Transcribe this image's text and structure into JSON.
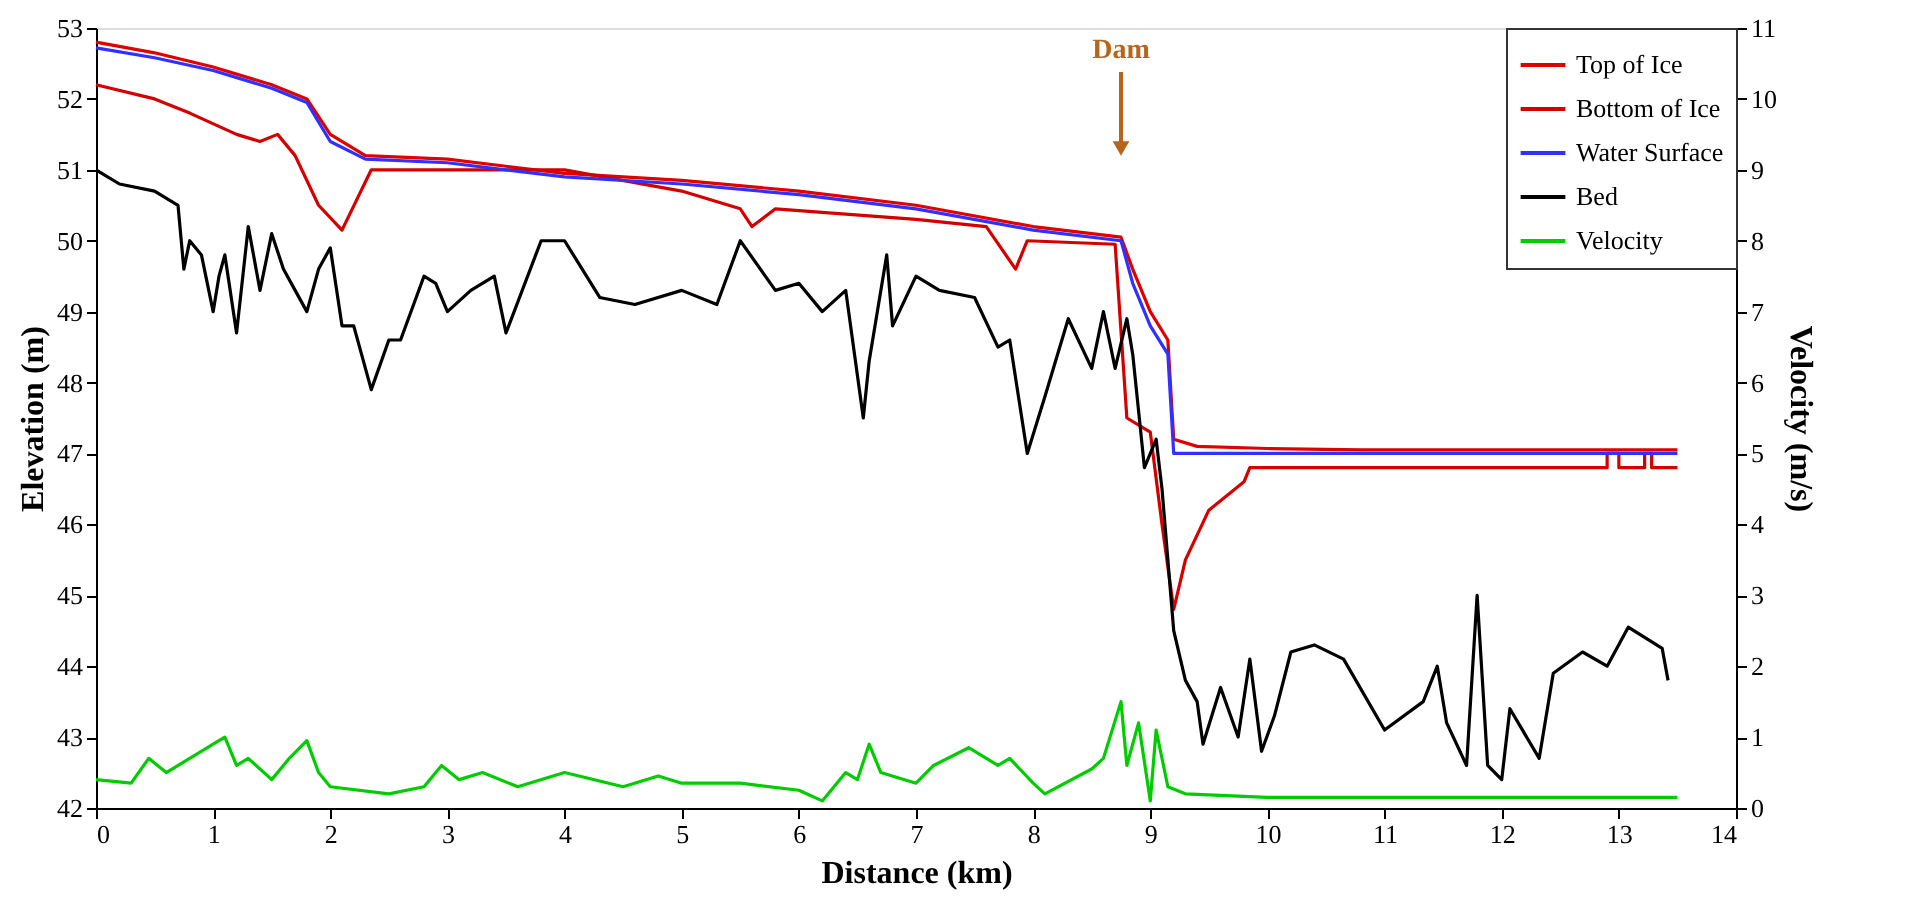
{
  "chart_data": {
    "type": "line",
    "xlabel": "Distance (km)",
    "ylabel": "Elevation (m)",
    "y2label": "Velocity (m/s)",
    "xlim": [
      0,
      14
    ],
    "xticks": [
      0,
      1,
      2,
      3,
      4,
      5,
      6,
      7,
      8,
      9,
      10,
      11,
      12,
      13,
      14
    ],
    "ylim": [
      42,
      53
    ],
    "yticks": [
      42,
      43,
      44,
      45,
      46,
      47,
      48,
      49,
      50,
      51,
      52,
      53
    ],
    "y2lim": [
      0,
      11
    ],
    "y2ticks": [
      0,
      1,
      2,
      3,
      4,
      5,
      6,
      7,
      8,
      9,
      10,
      11
    ],
    "grid": false,
    "legend": "top right",
    "marker": "none",
    "line_style": "solid",
    "annotations": [
      {
        "text": "Dam",
        "x": 8.75,
        "y": 51.3
      }
    ],
    "series": [
      {
        "name": "Top of Ice",
        "color": "#e00000",
        "x": [
          0,
          0.5,
          1,
          1.5,
          1.8,
          2.0,
          2.3,
          3,
          4,
          5,
          6,
          7,
          8,
          8.75,
          8.85,
          9.0,
          9.15,
          9.2,
          9.4,
          10,
          10.8,
          13.5
        ],
        "values": [
          52.8,
          52.65,
          52.45,
          52.2,
          52.0,
          51.5,
          51.2,
          51.15,
          50.95,
          50.85,
          50.7,
          50.5,
          50.2,
          50.05,
          49.6,
          49.0,
          48.6,
          47.2,
          47.1,
          47.07,
          47.05,
          47.05
        ]
      },
      {
        "name": "Bottom of Ice",
        "color": "#d40000",
        "x": [
          0,
          0.5,
          0.8,
          1.2,
          1.4,
          1.55,
          1.7,
          1.9,
          2.1,
          2.35,
          4,
          5,
          5.5,
          5.6,
          5.8,
          7,
          7.6,
          7.85,
          7.95,
          8.7,
          8.8,
          9.0,
          9.1,
          9.2,
          9.3,
          9.5,
          9.8,
          9.85,
          12.9,
          12.9,
          13.0,
          13.0,
          13.22,
          13.22,
          13.28,
          13.28,
          13.5
        ],
        "values": [
          52.2,
          52.0,
          51.8,
          51.5,
          51.4,
          51.5,
          51.2,
          50.5,
          50.15,
          51.0,
          51.0,
          50.7,
          50.45,
          50.2,
          50.45,
          50.3,
          50.2,
          49.6,
          50.0,
          49.95,
          47.5,
          47.3,
          46.0,
          44.8,
          45.5,
          46.2,
          46.6,
          46.8,
          46.8,
          47.0,
          47.0,
          46.8,
          46.8,
          47.0,
          47.0,
          46.8,
          46.8
        ]
      },
      {
        "name": "Water Surface",
        "color": "#3030ff",
        "x": [
          0,
          0.5,
          1,
          1.5,
          1.8,
          2.0,
          2.3,
          3,
          4,
          5,
          6,
          7,
          8,
          8.75,
          8.85,
          9.0,
          9.15,
          9.2,
          13.5
        ],
        "values": [
          52.72,
          52.58,
          52.4,
          52.15,
          51.95,
          51.4,
          51.15,
          51.1,
          50.9,
          50.8,
          50.65,
          50.45,
          50.15,
          50.0,
          49.4,
          48.8,
          48.4,
          47.0,
          47.0
        ]
      },
      {
        "name": "Bed",
        "color": "#000000",
        "x": [
          0,
          0.2,
          0.5,
          0.7,
          0.75,
          0.8,
          0.9,
          1.0,
          1.05,
          1.1,
          1.2,
          1.3,
          1.4,
          1.5,
          1.6,
          1.7,
          1.8,
          1.9,
          2.0,
          2.1,
          2.2,
          2.35,
          2.5,
          2.6,
          2.8,
          2.9,
          3.0,
          3.2,
          3.4,
          3.5,
          3.8,
          4.0,
          4.3,
          4.6,
          5.0,
          5.3,
          5.5,
          5.8,
          6.0,
          6.2,
          6.4,
          6.55,
          6.6,
          6.75,
          6.8,
          7.0,
          7.2,
          7.5,
          7.7,
          7.8,
          7.95,
          8.1,
          8.3,
          8.5,
          8.6,
          8.7,
          8.8,
          8.85,
          8.95,
          9.05,
          9.1,
          9.2,
          9.3,
          9.4,
          9.45,
          9.6,
          9.75,
          9.85,
          9.95,
          10.06,
          10.2,
          10.4,
          10.65,
          11.0,
          11.33,
          11.45,
          11.53,
          11.7,
          11.79,
          11.88,
          12.0,
          12.07,
          12.32,
          12.44,
          12.69,
          12.9,
          13.08,
          13.37,
          13.42
        ],
        "values": [
          51.0,
          50.8,
          50.7,
          50.5,
          49.6,
          50.0,
          49.8,
          49.0,
          49.5,
          49.8,
          48.7,
          50.2,
          49.3,
          50.1,
          49.6,
          49.3,
          49.0,
          49.6,
          49.9,
          48.8,
          48.8,
          47.9,
          48.6,
          48.6,
          49.5,
          49.4,
          49.0,
          49.3,
          49.5,
          48.7,
          50.0,
          50.0,
          49.2,
          49.1,
          49.3,
          49.1,
          50.0,
          49.3,
          49.4,
          49.0,
          49.3,
          47.5,
          48.3,
          49.8,
          48.8,
          49.5,
          49.3,
          49.2,
          48.5,
          48.6,
          47.0,
          47.8,
          48.9,
          48.2,
          49.0,
          48.2,
          48.9,
          48.4,
          46.8,
          47.2,
          46.5,
          44.5,
          43.8,
          43.5,
          42.9,
          43.7,
          43.0,
          44.1,
          42.8,
          43.3,
          44.2,
          44.3,
          44.1,
          43.1,
          43.5,
          44.0,
          43.2,
          42.6,
          45.0,
          42.6,
          42.4,
          43.4,
          42.7,
          43.9,
          44.2,
          44.0,
          44.55,
          44.25,
          43.8
        ]
      },
      {
        "name": "Velocity",
        "color": "#00cc00",
        "axis": "y2",
        "x": [
          0,
          0.3,
          0.45,
          0.6,
          0.8,
          1.0,
          1.1,
          1.2,
          1.3,
          1.5,
          1.65,
          1.8,
          1.9,
          2.0,
          2.5,
          2.8,
          2.95,
          3.1,
          3.3,
          3.6,
          4.0,
          4.5,
          4.8,
          5.0,
          5.5,
          6.0,
          6.2,
          6.4,
          6.5,
          6.6,
          6.7,
          7.0,
          7.15,
          7.45,
          7.7,
          7.8,
          8.0,
          8.1,
          8.5,
          8.6,
          8.75,
          8.8,
          8.9,
          9.0,
          9.05,
          9.15,
          9.3,
          10,
          13.5
        ],
        "values": [
          0.4,
          0.35,
          0.7,
          0.5,
          0.7,
          0.9,
          1.0,
          0.6,
          0.7,
          0.4,
          0.7,
          0.95,
          0.5,
          0.3,
          0.2,
          0.3,
          0.6,
          0.4,
          0.5,
          0.3,
          0.5,
          0.3,
          0.45,
          0.35,
          0.35,
          0.25,
          0.1,
          0.5,
          0.4,
          0.9,
          0.5,
          0.35,
          0.6,
          0.85,
          0.6,
          0.7,
          0.35,
          0.2,
          0.55,
          0.7,
          1.5,
          0.6,
          1.2,
          0.1,
          1.1,
          0.3,
          0.2,
          0.15,
          0.15
        ]
      }
    ]
  }
}
